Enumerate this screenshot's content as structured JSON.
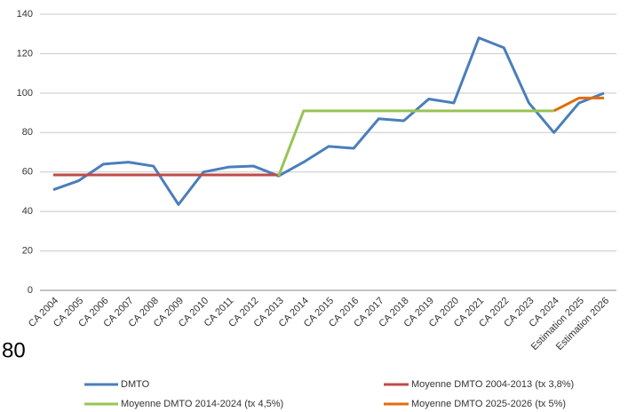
{
  "chart_data": {
    "type": "line",
    "categories": [
      "CA 2004",
      "CA 2005",
      "CA 2006",
      "CA 2007",
      "CA 2008",
      "CA 2009",
      "CA 2010",
      "CA 2011",
      "CA 2012",
      "CA 2013",
      "CA 2014",
      "CA 2015",
      "CA 2016",
      "CA 2017",
      "CA 2018",
      "CA 2019",
      "CA 2020",
      "CA 2021",
      "CA 2022",
      "CA 2023",
      "CA 2024",
      "Estimation 2025",
      "Estimation 2026"
    ],
    "series": [
      {
        "name": "DMTO",
        "color": "#4a7ebb",
        "values": [
          51,
          55.5,
          64,
          65,
          63,
          43.5,
          60,
          62.5,
          63,
          58,
          65,
          73,
          72,
          87,
          86,
          97,
          95,
          128,
          123,
          95,
          80,
          95,
          100
        ]
      },
      {
        "name": "Moyenne DMTO 2004-2013 (tx 3,8%)",
        "color": "#be4b48",
        "values": [
          58.5,
          58.5,
          58.5,
          58.5,
          58.5,
          58.5,
          58.5,
          58.5,
          58.5,
          58.5,
          null,
          null,
          null,
          null,
          null,
          null,
          null,
          null,
          null,
          null,
          null,
          null,
          null
        ]
      },
      {
        "name": "Moyenne DMTO 2014-2024 (tx 4,5%)",
        "color": "#98c455",
        "values": [
          null,
          null,
          null,
          null,
          null,
          null,
          null,
          null,
          null,
          58,
          91,
          91,
          91,
          91,
          91,
          91,
          91,
          91,
          91,
          91,
          91,
          null,
          null
        ]
      },
      {
        "name": "Moyenne DMTO 2025-2026 (tx 5%)",
        "color": "#e46c0a",
        "values": [
          null,
          null,
          null,
          null,
          null,
          null,
          null,
          null,
          null,
          null,
          null,
          null,
          null,
          null,
          null,
          null,
          null,
          null,
          null,
          null,
          91,
          97.5,
          97.5
        ]
      }
    ],
    "ylim": [
      0,
      140
    ],
    "yticks": [
      0,
      20,
      40,
      60,
      80,
      100,
      120,
      140
    ],
    "grid": true,
    "legend": "bottom",
    "annotation": "80"
  }
}
